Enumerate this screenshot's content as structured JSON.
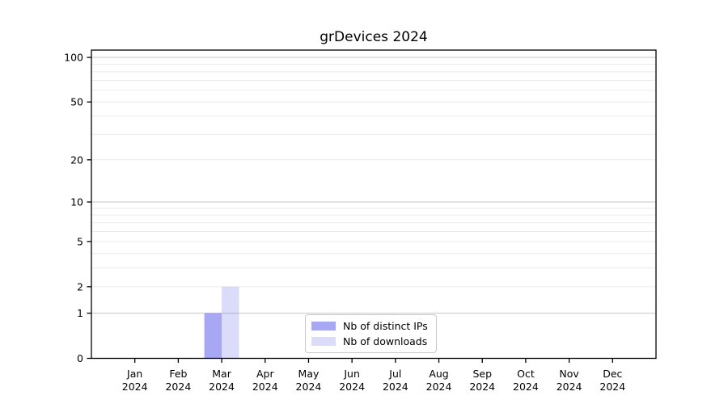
{
  "chart_data": {
    "type": "bar",
    "title": "grDevices 2024",
    "x_categories": [
      {
        "month": "Jan",
        "year": "2024"
      },
      {
        "month": "Feb",
        "year": "2024"
      },
      {
        "month": "Mar",
        "year": "2024"
      },
      {
        "month": "Apr",
        "year": "2024"
      },
      {
        "month": "May",
        "year": "2024"
      },
      {
        "month": "Jun",
        "year": "2024"
      },
      {
        "month": "Jul",
        "year": "2024"
      },
      {
        "month": "Aug",
        "year": "2024"
      },
      {
        "month": "Sep",
        "year": "2024"
      },
      {
        "month": "Oct",
        "year": "2024"
      },
      {
        "month": "Nov",
        "year": "2024"
      },
      {
        "month": "Dec",
        "year": "2024"
      }
    ],
    "series": [
      {
        "name": "Nb of distinct IPs",
        "color": "rgba(115,115,237,0.63)",
        "values": [
          0,
          0,
          1,
          0,
          0,
          0,
          0,
          0,
          0,
          0,
          0,
          0
        ]
      },
      {
        "name": "Nb of downloads",
        "color": "rgba(115,115,237,0.26)",
        "values": [
          0,
          0,
          2,
          0,
          0,
          0,
          0,
          0,
          0,
          0,
          0,
          0
        ]
      }
    ],
    "y_axis": {
      "scale": "log1p",
      "ticks": [
        0,
        1,
        2,
        5,
        10,
        20,
        50,
        100
      ],
      "gridlines_major": [
        1,
        10,
        100
      ],
      "gridlines_minor": [
        2,
        3,
        4,
        5,
        6,
        7,
        8,
        9,
        20,
        30,
        40,
        50,
        60,
        70,
        80,
        90
      ],
      "max": 112
    },
    "grid": {
      "major_color": "#c6c6c6",
      "minor_color": "#ebebeb"
    },
    "spine_color": "#000000",
    "legend": {
      "position": "bottom-center",
      "border_color": "#c9c9c9"
    }
  }
}
